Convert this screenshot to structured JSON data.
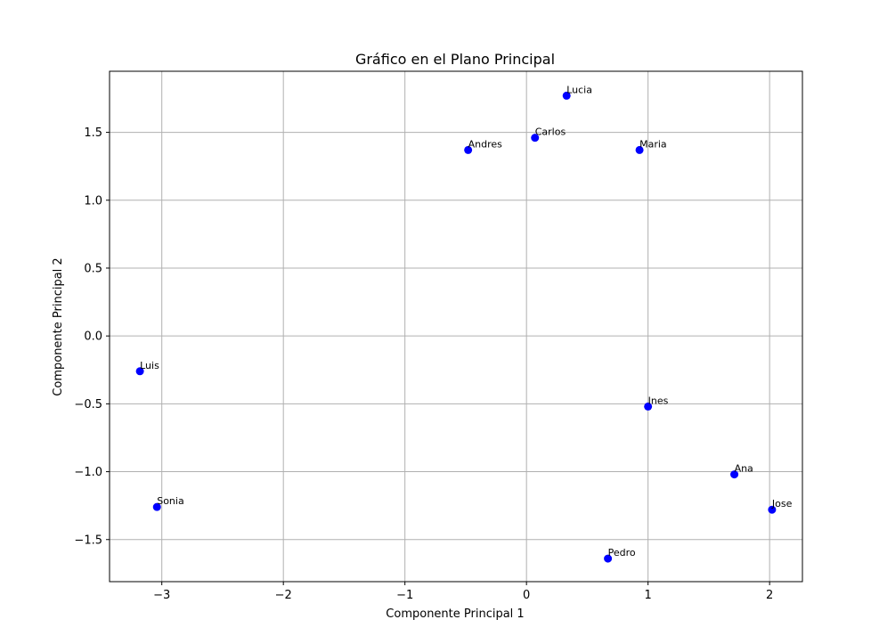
{
  "chart_data": {
    "type": "scatter",
    "title": "Gráfico en el Plano Principal",
    "xlabel": "Componente Principal 1",
    "ylabel": "Componente Principal 2",
    "xlim": [
      -3.43,
      2.27
    ],
    "ylim": [
      -1.81,
      1.95
    ],
    "xticks": [
      -3,
      -2,
      -1,
      0,
      1,
      2
    ],
    "xtick_labels": [
      "−3",
      "−2",
      "−1",
      "0",
      "1",
      "2"
    ],
    "yticks": [
      -1.5,
      -1.0,
      -0.5,
      0.0,
      0.5,
      1.0,
      1.5
    ],
    "ytick_labels": [
      "−1.5",
      "−1.0",
      "−0.5",
      "0.0",
      "0.5",
      "1.0",
      "1.5"
    ],
    "grid": true,
    "marker_color": "#0000ff",
    "points": [
      {
        "label": "Lucia",
        "x": 0.33,
        "y": 1.77
      },
      {
        "label": "Carlos",
        "x": 0.07,
        "y": 1.46
      },
      {
        "label": "Andres",
        "x": -0.48,
        "y": 1.37
      },
      {
        "label": "Maria",
        "x": 0.93,
        "y": 1.37
      },
      {
        "label": "Luis",
        "x": -3.18,
        "y": -0.26
      },
      {
        "label": "Ines",
        "x": 1.0,
        "y": -0.52
      },
      {
        "label": "Ana",
        "x": 1.71,
        "y": -1.02
      },
      {
        "label": "Sonia",
        "x": -3.04,
        "y": -1.26
      },
      {
        "label": "Jose",
        "x": 2.02,
        "y": -1.28
      },
      {
        "label": "Pedro",
        "x": 0.67,
        "y": -1.64
      }
    ]
  }
}
